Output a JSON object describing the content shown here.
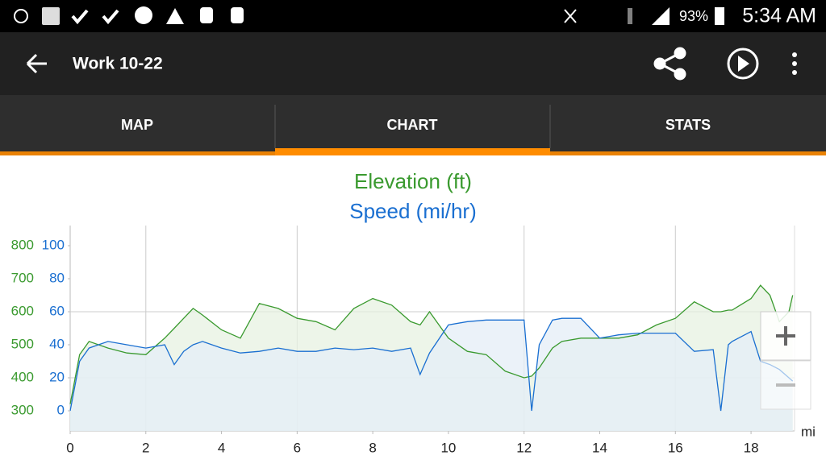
{
  "status_bar": {
    "battery": "93%",
    "time": "5:34 AM"
  },
  "app_bar": {
    "title": "Work 10-22"
  },
  "tabs": [
    "MAP",
    "CHART",
    "STATS"
  ],
  "chart_data": {
    "type": "line",
    "x": [
      0,
      0.25,
      0.5,
      1,
      1.5,
      2,
      2.5,
      2.75,
      3,
      3.25,
      3.5,
      4,
      4.5,
      5,
      5.5,
      6,
      6.5,
      7,
      7.5,
      8,
      8.5,
      9,
      9.25,
      9.5,
      10,
      10.5,
      11,
      11.5,
      12,
      12.2,
      12.4,
      12.75,
      13,
      13.5,
      14,
      14.5,
      15,
      15.5,
      16,
      16.5,
      17,
      17.2,
      17.4,
      17.5,
      18,
      18.25,
      18.5,
      18.75,
      19,
      19.1
    ],
    "series": [
      {
        "name": "Elevation (ft)",
        "color": "#3a9a2f",
        "fill": "#e7f2e1",
        "values": [
          320,
          470,
          510,
          490,
          475,
          470,
          520,
          550,
          580,
          610,
          590,
          545,
          520,
          625,
          610,
          580,
          570,
          545,
          610,
          640,
          620,
          570,
          560,
          600,
          520,
          480,
          470,
          420,
          400,
          405,
          430,
          490,
          510,
          520,
          520,
          520,
          530,
          560,
          580,
          630,
          600,
          600,
          605,
          605,
          640,
          680,
          650,
          570,
          600,
          650
        ]
      },
      {
        "name": "Speed (mi/hr)",
        "color": "#1a6fd1",
        "fill": "#e4eef7",
        "axis": "y2",
        "values": [
          0,
          30,
          38,
          42,
          40,
          38,
          40,
          28,
          36,
          40,
          42,
          38,
          35,
          36,
          38,
          36,
          36,
          38,
          37,
          38,
          36,
          38,
          22,
          35,
          52,
          54,
          55,
          55,
          55,
          0,
          40,
          55,
          56,
          56,
          44,
          46,
          47,
          47,
          47,
          36,
          37,
          0,
          40,
          42,
          48,
          30,
          28,
          25,
          20,
          18
        ]
      }
    ],
    "xlabel": "mi",
    "xlim": [
      0,
      19.15
    ],
    "xticks": [
      0,
      2,
      4,
      6,
      8,
      10,
      12,
      14,
      16,
      18
    ],
    "ylim": [
      239,
      861
    ],
    "yticks": [
      300,
      400,
      500,
      600,
      700,
      800
    ],
    "y2lim": [
      -12.2,
      112.2
    ],
    "y2ticks": [
      0,
      20,
      40,
      60,
      80,
      100
    ],
    "grid_x": [
      2,
      6,
      12,
      16
    ],
    "grid_y": [
      400,
      600
    ]
  }
}
